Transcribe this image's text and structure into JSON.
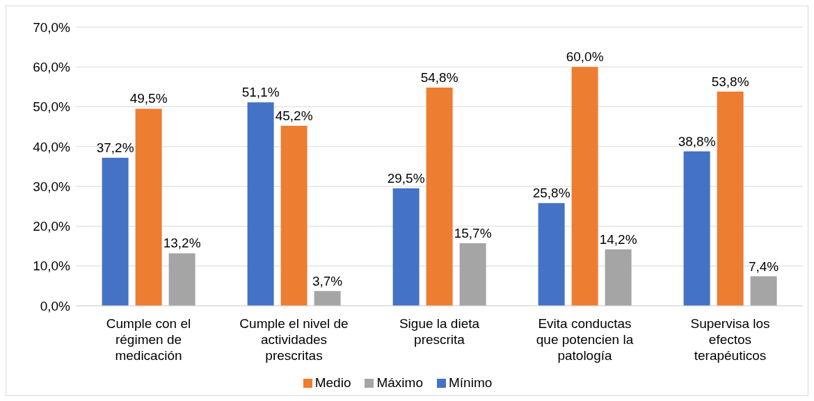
{
  "chart_data": {
    "type": "bar",
    "categories": [
      "Cumple con el régimen de medicación",
      "Cumple el nivel de actividades prescritas",
      "Sigue la dieta prescrita",
      "Evita conductas que potencien la patología",
      "Supervisa los efectos terapéuticos"
    ],
    "series": [
      {
        "name": "Mínimo",
        "color": "#4472c4",
        "values": [
          37.2,
          51.1,
          29.5,
          25.8,
          38.8
        ],
        "value_labels": [
          "37,2%",
          "51,1%",
          "29,5%",
          "25,8%",
          "38,8%"
        ]
      },
      {
        "name": "Medio",
        "color": "#ed7d31",
        "values": [
          49.5,
          45.2,
          54.8,
          60.0,
          53.8
        ],
        "value_labels": [
          "49,5%",
          "45,2%",
          "54,8%",
          "60,0%",
          "53,8%"
        ]
      },
      {
        "name": "Máximo",
        "color": "#a5a5a5",
        "values": [
          13.2,
          3.7,
          15.7,
          14.2,
          7.4
        ],
        "value_labels": [
          "13,2%",
          "3,7%",
          "15,7%",
          "14,2%",
          "7,4%"
        ]
      }
    ],
    "ylim": [
      0,
      70
    ],
    "yticks": [
      {
        "value": 0,
        "label": "0,0%"
      },
      {
        "value": 10,
        "label": "10,0%"
      },
      {
        "value": 20,
        "label": "20,0%"
      },
      {
        "value": 30,
        "label": "30,0%"
      },
      {
        "value": 40,
        "label": "40,0%"
      },
      {
        "value": 50,
        "label": "50,0%"
      },
      {
        "value": 60,
        "label": "60,0%"
      },
      {
        "value": 70,
        "label": "70,0%"
      }
    ],
    "grid": "y",
    "legend": "bottom"
  }
}
